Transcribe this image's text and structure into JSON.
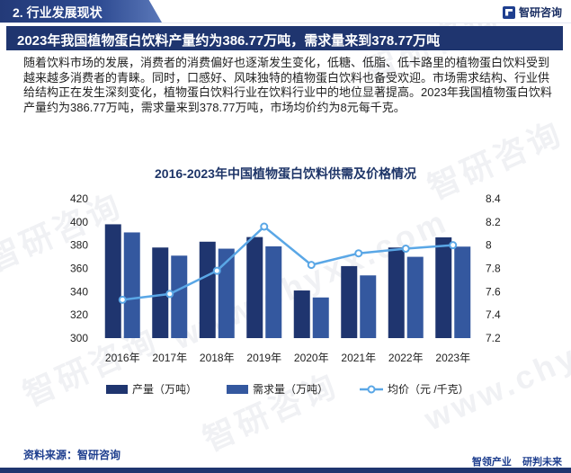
{
  "header": {
    "section_label": "2. 行业发展现状",
    "brand_name": "智研咨询"
  },
  "headline": "2023年我国植物蛋白饮料产量约为386.77万吨，需求量来到378.77万吨",
  "paragraph": "随着饮料市场的发展，消费者的消费偏好也逐渐发生变化，低糖、低脂、低卡路里的植物蛋白饮料受到越来越多消费者的青睐。同时，口感好、风味独特的植物蛋白饮料也备受欢迎。市场需求结构、行业供给结构正在发生深刻变化，植物蛋白饮料行业在饮料行业中的地位显著提高。2023年我国植物蛋白饮料产量约为386.77万吨，需求量来到378.77万吨，市场均价约为8元每千克。",
  "watermark": {
    "text_cn": "智研咨询",
    "text_en": "www.chyxx.com"
  },
  "chart_data": {
    "type": "bar",
    "title": "2016-2023年中国植物蛋白饮料供需及价格情况",
    "categories": [
      "2016年",
      "2017年",
      "2018年",
      "2019年",
      "2020年",
      "2021年",
      "2022年",
      "2023年"
    ],
    "series": [
      {
        "name": "产量（万吨）",
        "type": "bar",
        "axis": "left",
        "color": "#1f356f",
        "values": [
          398,
          378,
          383,
          387,
          341,
          362,
          378,
          386.77
        ]
      },
      {
        "name": "需求量（万吨）",
        "type": "bar",
        "axis": "left",
        "color": "#34589f",
        "values": [
          391,
          371,
          377,
          379,
          335,
          354,
          370,
          378.77
        ]
      },
      {
        "name": "均价（元 /千克）",
        "type": "line",
        "axis": "right",
        "color": "#5aa7e6",
        "values": [
          7.53,
          7.58,
          7.78,
          8.16,
          7.83,
          7.93,
          7.97,
          8.0
        ]
      }
    ],
    "y_left": {
      "ylim": [
        300,
        420
      ],
      "ticks": [
        "420",
        "400",
        "380",
        "360",
        "340",
        "320",
        "300"
      ]
    },
    "y_right": {
      "ylim": [
        7.2,
        8.4
      ],
      "ticks": [
        "8.4",
        "8.2",
        "8",
        "7.8",
        "7.6",
        "7.4",
        "7.2"
      ]
    },
    "grid": false,
    "legend_position": "bottom"
  },
  "footer": {
    "source_label": "资料来源：智研咨询",
    "brand_left": "智领产业",
    "brand_right": "研判未来"
  }
}
